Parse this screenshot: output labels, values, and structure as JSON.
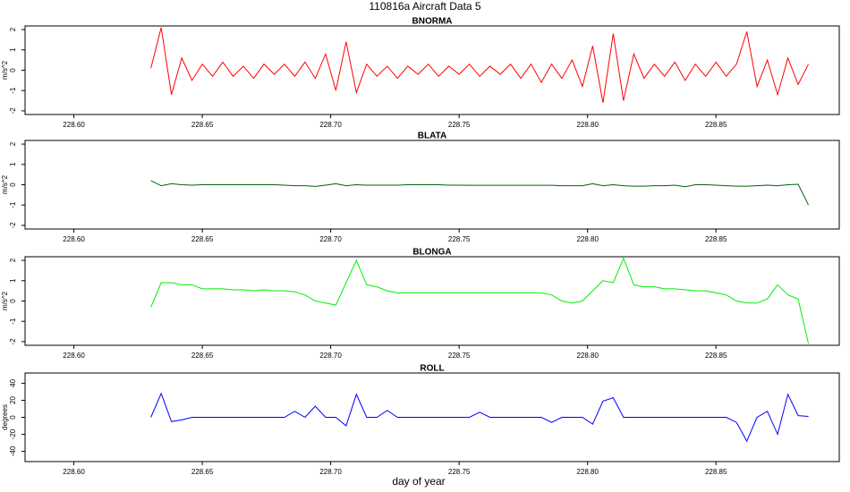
{
  "title": "110816a   Aircraft Data 5",
  "chart_data": [
    {
      "type": "line",
      "title": "BNORMA",
      "ylabel": "m/s^2",
      "color": "#ff0000",
      "xlim": [
        228.581,
        228.898
      ],
      "ylim": [
        -2.18,
        2.18
      ],
      "xticks": [
        {
          "value": 228.6,
          "label": "228.60"
        },
        228.65,
        {
          "value": 228.7,
          "label": "228.70"
        },
        228.75,
        {
          "value": 228.8,
          "label": "228.80"
        },
        228.85
      ],
      "yticks": [
        -2,
        -1,
        0,
        1,
        2
      ],
      "x": [
        228.63,
        228.634,
        228.638,
        228.642,
        228.646,
        228.65,
        228.654,
        228.658,
        228.662,
        228.666,
        228.67,
        228.674,
        228.678,
        228.682,
        228.686,
        228.69,
        228.694,
        228.698,
        228.702,
        228.706,
        228.71,
        228.714,
        228.718,
        228.722,
        228.726,
        228.73,
        228.734,
        228.738,
        228.742,
        228.746,
        228.75,
        228.754,
        228.758,
        228.762,
        228.766,
        228.77,
        228.774,
        228.778,
        228.782,
        228.786,
        228.79,
        228.794,
        228.798,
        228.802,
        228.806,
        228.81,
        228.814,
        228.818,
        228.822,
        228.826,
        228.83,
        228.834,
        228.838,
        228.842,
        228.846,
        228.85,
        228.854,
        228.858,
        228.862,
        228.866,
        228.87,
        228.874,
        228.878,
        228.882,
        228.886
      ],
      "values": [
        0.1,
        2.1,
        -1.2,
        0.6,
        -0.5,
        0.3,
        -0.3,
        0.4,
        -0.3,
        0.2,
        -0.4,
        0.3,
        -0.2,
        0.3,
        -0.3,
        0.4,
        -0.4,
        0.8,
        -1.0,
        1.4,
        -1.1,
        0.3,
        -0.3,
        0.2,
        -0.4,
        0.2,
        -0.2,
        0.3,
        -0.3,
        0.2,
        -0.2,
        0.3,
        -0.3,
        0.2,
        -0.2,
        0.3,
        -0.4,
        0.3,
        -0.6,
        0.3,
        -0.4,
        0.5,
        -0.8,
        1.2,
        -1.6,
        1.8,
        -1.5,
        0.8,
        -0.4,
        0.3,
        -0.3,
        0.4,
        -0.5,
        0.3,
        -0.3,
        0.4,
        -0.3,
        0.3,
        1.9,
        -0.8,
        0.5,
        -1.2,
        0.6,
        -0.7,
        0.3
      ]
    },
    {
      "type": "line",
      "title": "BLATA",
      "ylabel": "m/s^2",
      "color": "#006400",
      "xlim": [
        228.581,
        228.898
      ],
      "ylim": [
        -2.18,
        2.18
      ],
      "xticks": [
        {
          "value": 228.6,
          "label": "228.60"
        },
        228.65,
        {
          "value": 228.7,
          "label": "228.70"
        },
        228.75,
        {
          "value": 228.8,
          "label": "228.80"
        },
        228.85
      ],
      "yticks": [
        -2,
        -1,
        0,
        1,
        2
      ],
      "x": [
        228.63,
        228.634,
        228.638,
        228.642,
        228.646,
        228.65,
        228.654,
        228.658,
        228.662,
        228.666,
        228.67,
        228.674,
        228.678,
        228.682,
        228.686,
        228.69,
        228.694,
        228.698,
        228.702,
        228.706,
        228.71,
        228.714,
        228.718,
        228.722,
        228.726,
        228.73,
        228.734,
        228.738,
        228.742,
        228.746,
        228.75,
        228.754,
        228.758,
        228.762,
        228.766,
        228.77,
        228.774,
        228.778,
        228.782,
        228.786,
        228.79,
        228.794,
        228.798,
        228.802,
        228.806,
        228.81,
        228.814,
        228.818,
        228.822,
        228.826,
        228.83,
        228.834,
        228.838,
        228.842,
        228.846,
        228.85,
        228.854,
        228.858,
        228.862,
        228.866,
        228.87,
        228.874,
        228.878,
        228.882,
        228.886
      ],
      "values": [
        0.2,
        -0.05,
        0.05,
        0,
        -0.02,
        0,
        0,
        0,
        0,
        0,
        0,
        0,
        0,
        -0.02,
        -0.05,
        -0.05,
        -0.08,
        -0.02,
        0.05,
        -0.05,
        0,
        -0.02,
        -0.02,
        -0.02,
        -0.02,
        0,
        0,
        0,
        0,
        -0.02,
        -0.02,
        -0.03,
        -0.03,
        -0.03,
        -0.03,
        -0.03,
        -0.03,
        -0.03,
        -0.03,
        -0.03,
        -0.05,
        -0.05,
        -0.05,
        0.05,
        -0.05,
        0,
        -0.05,
        -0.07,
        -0.07,
        -0.05,
        -0.05,
        -0.02,
        -0.1,
        0,
        0,
        -0.02,
        -0.05,
        -0.07,
        -0.07,
        -0.05,
        -0.02,
        -0.05,
        0,
        0.02,
        -1.0
      ]
    },
    {
      "type": "line",
      "title": "BLONGA",
      "ylabel": "m/s^2",
      "color": "#00ee00",
      "xlim": [
        228.581,
        228.898
      ],
      "ylim": [
        -2.18,
        2.18
      ],
      "xticks": [
        {
          "value": 228.6,
          "label": "228.60"
        },
        228.65,
        {
          "value": 228.7,
          "label": "228.70"
        },
        228.75,
        {
          "value": 228.8,
          "label": "228.80"
        },
        228.85
      ],
      "yticks": [
        -2,
        -1,
        0,
        1,
        2
      ],
      "x": [
        228.63,
        228.634,
        228.638,
        228.642,
        228.646,
        228.65,
        228.654,
        228.658,
        228.662,
        228.666,
        228.67,
        228.674,
        228.678,
        228.682,
        228.686,
        228.69,
        228.694,
        228.698,
        228.702,
        228.706,
        228.71,
        228.714,
        228.718,
        228.722,
        228.726,
        228.73,
        228.734,
        228.738,
        228.742,
        228.746,
        228.75,
        228.754,
        228.758,
        228.762,
        228.766,
        228.77,
        228.774,
        228.778,
        228.782,
        228.786,
        228.79,
        228.794,
        228.798,
        228.802,
        228.806,
        228.81,
        228.814,
        228.818,
        228.822,
        228.826,
        228.83,
        228.834,
        228.838,
        228.842,
        228.846,
        228.85,
        228.854,
        228.858,
        228.862,
        228.866,
        228.87,
        228.874,
        228.878,
        228.882,
        228.886
      ],
      "values": [
        -0.3,
        0.9,
        0.9,
        0.8,
        0.8,
        0.6,
        0.6,
        0.6,
        0.55,
        0.55,
        0.5,
        0.55,
        0.5,
        0.5,
        0.45,
        0.3,
        0.0,
        -0.1,
        -0.2,
        0.9,
        2.0,
        0.8,
        0.7,
        0.5,
        0.4,
        0.4,
        0.4,
        0.4,
        0.4,
        0.4,
        0.4,
        0.4,
        0.4,
        0.4,
        0.4,
        0.4,
        0.4,
        0.4,
        0.4,
        0.3,
        0.0,
        -0.1,
        0.0,
        0.5,
        1.0,
        0.9,
        2.1,
        0.8,
        0.7,
        0.7,
        0.6,
        0.6,
        0.55,
        0.5,
        0.5,
        0.4,
        0.3,
        0.0,
        -0.1,
        -0.1,
        0.1,
        0.8,
        0.3,
        0.1,
        -2.1
      ]
    },
    {
      "type": "line",
      "title": "ROLL",
      "ylabel": "degrees",
      "xlabel": "day of year",
      "color": "#0000ff",
      "xlim": [
        228.581,
        228.898
      ],
      "ylim": [
        -52,
        52
      ],
      "xticks": [
        {
          "value": 228.6,
          "label": "228.60"
        },
        228.65,
        {
          "value": 228.7,
          "label": "228.70"
        },
        228.75,
        {
          "value": 228.8,
          "label": "228.80"
        },
        228.85
      ],
      "yticks": [
        -40,
        -20,
        0,
        20,
        40
      ],
      "x": [
        228.63,
        228.634,
        228.638,
        228.642,
        228.646,
        228.65,
        228.654,
        228.658,
        228.662,
        228.666,
        228.67,
        228.674,
        228.678,
        228.682,
        228.686,
        228.69,
        228.694,
        228.698,
        228.702,
        228.706,
        228.71,
        228.714,
        228.718,
        228.722,
        228.726,
        228.73,
        228.734,
        228.738,
        228.742,
        228.746,
        228.75,
        228.754,
        228.758,
        228.762,
        228.766,
        228.77,
        228.774,
        228.778,
        228.782,
        228.786,
        228.79,
        228.794,
        228.798,
        228.802,
        228.806,
        228.81,
        228.814,
        228.818,
        228.822,
        228.826,
        228.83,
        228.834,
        228.838,
        228.842,
        228.846,
        228.85,
        228.854,
        228.858,
        228.862,
        228.866,
        228.87,
        228.874,
        228.878,
        228.882,
        228.886
      ],
      "values": [
        0,
        28,
        -5,
        -3,
        0,
        0,
        0,
        0,
        0,
        0,
        0,
        0,
        0,
        0,
        7,
        0,
        13,
        0,
        0,
        -10,
        27,
        0,
        0,
        8,
        0,
        0,
        0,
        0,
        0,
        0,
        0,
        0,
        6,
        0,
        0,
        0,
        0,
        0,
        0,
        -6,
        0,
        0,
        0,
        -8,
        19,
        23,
        0,
        0,
        0,
        0,
        0,
        0,
        0,
        0,
        0,
        0,
        0,
        -6,
        -28,
        0,
        7,
        -20,
        27,
        2,
        1
      ]
    }
  ]
}
